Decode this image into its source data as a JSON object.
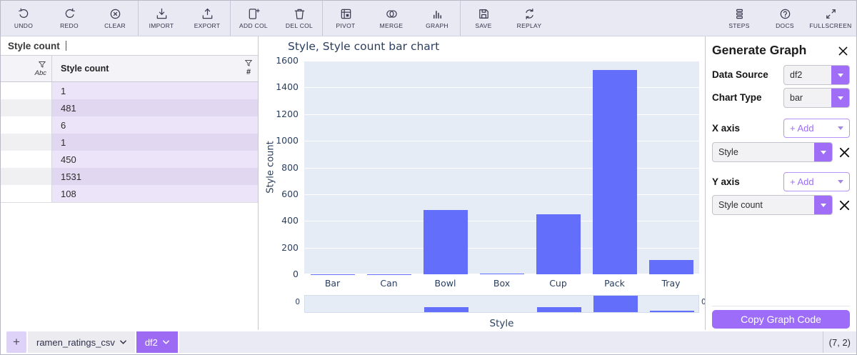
{
  "toolbar": {
    "groups": [
      {
        "items": [
          {
            "icon": "undo-icon",
            "label": "UNDO"
          },
          {
            "icon": "redo-icon",
            "label": "REDO"
          },
          {
            "icon": "clear-icon",
            "label": "CLEAR"
          }
        ]
      },
      {
        "items": [
          {
            "icon": "import-icon",
            "label": "IMPORT"
          },
          {
            "icon": "export-icon",
            "label": "EXPORT"
          }
        ]
      },
      {
        "items": [
          {
            "icon": "add-column-icon",
            "label": "ADD COL"
          },
          {
            "icon": "delete-column-icon",
            "label": "DEL COL"
          }
        ]
      },
      {
        "items": [
          {
            "icon": "pivot-icon",
            "label": "PIVOT"
          },
          {
            "icon": "merge-icon",
            "label": "MERGE"
          },
          {
            "icon": "graph-icon",
            "label": "GRAPH"
          }
        ]
      },
      {
        "items": [
          {
            "icon": "save-icon",
            "label": "SAVE"
          },
          {
            "icon": "replay-icon",
            "label": "REPLAY"
          }
        ]
      }
    ],
    "right_items": [
      {
        "icon": "steps-icon",
        "label": "STEPS"
      },
      {
        "icon": "docs-icon",
        "label": "DOCS"
      },
      {
        "icon": "fullscreen-icon",
        "label": "FULLSCREEN"
      }
    ]
  },
  "sheet_panel": {
    "formula_bar_text": "Style count",
    "header": {
      "column_name": "Style count",
      "index_dtype": "Abc",
      "column_dtype": "#"
    },
    "rows": [
      "1",
      "481",
      "6",
      "1",
      "450",
      "1531",
      "108"
    ]
  },
  "chart_data": {
    "type": "bar",
    "title": "Style, Style count bar chart",
    "categories": [
      "Bar",
      "Can",
      "Bowl",
      "Box",
      "Cup",
      "Pack",
      "Tray"
    ],
    "values": [
      1,
      1,
      481,
      6,
      450,
      1531,
      108
    ],
    "xlabel": "Style",
    "ylabel": "Style count",
    "ylim": [
      0,
      1600
    ],
    "yticks": [
      0,
      200,
      400,
      600,
      800,
      1000,
      1200,
      1400,
      1600
    ],
    "grid": true,
    "legend": false,
    "bar_color": "#636efa",
    "plot_bg": "#e5ecf6",
    "text_color": "#2a3f5f",
    "rangeslider": {
      "shown": true,
      "left_label": "0",
      "right_label": "0"
    }
  },
  "graph_config_panel": {
    "title": "Generate Graph",
    "data_source": {
      "label": "Data Source",
      "value": "df2"
    },
    "chart_type": {
      "label": "Chart Type",
      "value": "bar"
    },
    "x_axis": {
      "label": "X axis",
      "add_button": "+ Add",
      "series": [
        "Style"
      ]
    },
    "y_axis": {
      "label": "Y axis",
      "add_button": "+ Add",
      "series": [
        "Style count"
      ]
    },
    "copy_button_label": "Copy Graph Code"
  },
  "footer": {
    "add_tab_label": "+",
    "tabs": [
      {
        "label": "ramen_ratings_csv",
        "active": false
      },
      {
        "label": "df2",
        "active": true
      }
    ],
    "dimensions": "(7, 2)"
  },
  "colors": {
    "accent_purple": "#9d6cf9",
    "bar_blue": "#636efa",
    "plot_background": "#e5ecf6",
    "chart_text": "#2a3f5f",
    "toolbar_background": "#e8e9f3",
    "cell_purple_light": "#ece4f8",
    "cell_purple_dark": "#e2d7f1"
  }
}
